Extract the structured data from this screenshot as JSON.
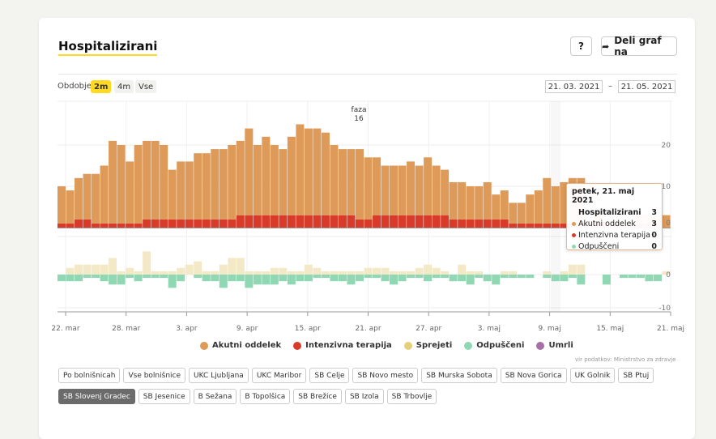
{
  "title": "Hospitalizirani",
  "help_label": "?",
  "share_label": "Deli graf na",
  "period": {
    "label": "Obdobje",
    "options": [
      "2m",
      "4m",
      "Vse"
    ],
    "selected": "2m"
  },
  "date_range": {
    "from": "21. 03. 2021",
    "separator": "–",
    "to": "21. 05. 2021"
  },
  "annotation": {
    "line1": "faza",
    "line2": "16"
  },
  "colors": {
    "akutni": "#dd9a59",
    "intenzivna": "#d93b2b",
    "sprejeti": "#f4e9c7",
    "odpusceni": "#8fd8b3",
    "umrli": "#a770a6",
    "grid": "#eeeeee"
  },
  "tooltip": {
    "date": "petek, 21. maj 2021",
    "header": "Hospitalizirani",
    "header_value": "3",
    "rows": [
      {
        "label": "Akutni oddelek",
        "value": "3",
        "color": "#dd9a59"
      },
      {
        "label": "Intenzivna terapija",
        "value": "0",
        "color": "#d93b2b"
      },
      {
        "label": "Odpuščeni",
        "value": "0",
        "color": "#8fd8b3"
      }
    ]
  },
  "legend": [
    {
      "label": "Akutni oddelek",
      "color": "#dd9a59"
    },
    {
      "label": "Intenzivna terapija",
      "color": "#d93b2b"
    },
    {
      "label": "Sprejeti",
      "color": "#e6cf7b"
    },
    {
      "label": "Odpuščeni",
      "color": "#8fd8b3"
    },
    {
      "label": "Umrli",
      "color": "#a770a6"
    }
  ],
  "source": "vir podatkov: Ministrstvo za zdravje",
  "hospitals_row1": [
    "Po bolnišnicah",
    "Vse bolnišnice",
    "UKC Ljubljana",
    "UKC Maribor",
    "SB Celje",
    "SB Novo mesto",
    "SB Murska Sobota",
    "SB Nova Gorica",
    "UK Golnik",
    "SB Ptuj"
  ],
  "hospitals_row2": [
    "SB Slovenj Gradec",
    "SB Jesenice",
    "B Sežana",
    "B Topolšica",
    "SB Brežice",
    "SB Izola",
    "SB Trbovlje"
  ],
  "hospitals_selected": "SB Slovenj Gradec",
  "chart_data": {
    "type": "bar",
    "x_ticks": [
      "22. mar",
      "28. mar",
      "3. apr",
      "9. apr",
      "15. apr",
      "21. apr",
      "27. apr",
      "3. maj",
      "9. maj",
      "15. maj",
      "21. maj"
    ],
    "top": {
      "y_ticks": [
        10,
        20
      ],
      "ylim": [
        0,
        30
      ],
      "series": [
        {
          "name": "Akutni oddelek",
          "values": [
            9,
            8,
            10,
            11,
            12,
            14,
            20,
            19,
            15,
            19,
            19,
            19,
            18,
            12,
            14,
            14,
            16,
            16,
            17,
            17,
            18,
            18,
            21,
            17,
            19,
            17,
            16,
            19,
            22,
            21,
            21,
            20,
            17,
            16,
            16,
            17,
            15,
            14,
            12,
            12,
            12,
            13,
            12,
            14,
            12,
            11,
            9,
            9,
            8,
            8,
            9,
            6,
            7,
            5,
            5,
            7,
            8,
            11,
            9,
            10,
            11,
            11,
            1,
            3,
            1,
            1,
            1,
            0,
            2,
            2,
            3,
            3
          ]
        },
        {
          "name": "Intenzivna terapija",
          "values": [
            1,
            1,
            2,
            2,
            1,
            1,
            1,
            1,
            1,
            1,
            2,
            2,
            2,
            2,
            2,
            2,
            2,
            2,
            2,
            2,
            2,
            3,
            3,
            3,
            3,
            3,
            3,
            3,
            3,
            3,
            3,
            3,
            3,
            3,
            3,
            2,
            2,
            3,
            3,
            3,
            3,
            3,
            3,
            3,
            3,
            3,
            2,
            2,
            2,
            2,
            2,
            2,
            2,
            1,
            1,
            1,
            1,
            1,
            1,
            1,
            1,
            1,
            1,
            1,
            1,
            1,
            1,
            1,
            1,
            1,
            0,
            0
          ]
        }
      ]
    },
    "bottom": {
      "y_ticks": [
        -10,
        0
      ],
      "ylim": [
        -12,
        10
      ],
      "series": [
        {
          "name": "Sprejeti",
          "values": [
            0,
            2,
            3,
            3,
            3,
            3,
            5,
            1,
            2,
            1,
            7,
            1,
            1,
            1,
            2,
            3,
            4,
            1,
            1,
            3,
            5,
            5,
            1,
            1,
            1,
            2,
            2,
            1,
            1,
            3,
            2,
            1,
            1,
            1,
            1,
            1,
            2,
            2,
            2,
            1,
            1,
            1,
            2,
            3,
            2,
            1,
            0,
            3,
            1,
            1,
            0,
            0,
            1,
            1,
            0,
            0,
            0,
            1,
            0,
            1,
            3,
            3,
            0,
            0,
            0,
            0,
            0,
            0,
            0,
            0,
            0,
            1
          ]
        },
        {
          "name": "Odpuščeni",
          "values": [
            -2,
            -2,
            -2,
            -1,
            -1,
            -2,
            -3,
            -3,
            -1,
            -2,
            -1,
            -1,
            -1,
            -4,
            -2,
            0,
            -1,
            -2,
            -2,
            -4,
            -2,
            -2,
            -4,
            -3,
            -3,
            -3,
            -2,
            -3,
            -2,
            -2,
            -1,
            -1,
            -2,
            -2,
            -3,
            -2,
            -1,
            -1,
            -2,
            -3,
            -2,
            -1,
            -1,
            -2,
            -1,
            -1,
            -2,
            -2,
            -3,
            -1,
            -2,
            -3,
            -1,
            -1,
            -1,
            -1,
            0,
            -1,
            -2,
            -2,
            -1,
            -3,
            0,
            0,
            -3,
            0,
            -1,
            -1,
            -1,
            -2,
            -2,
            0
          ]
        }
      ]
    }
  }
}
